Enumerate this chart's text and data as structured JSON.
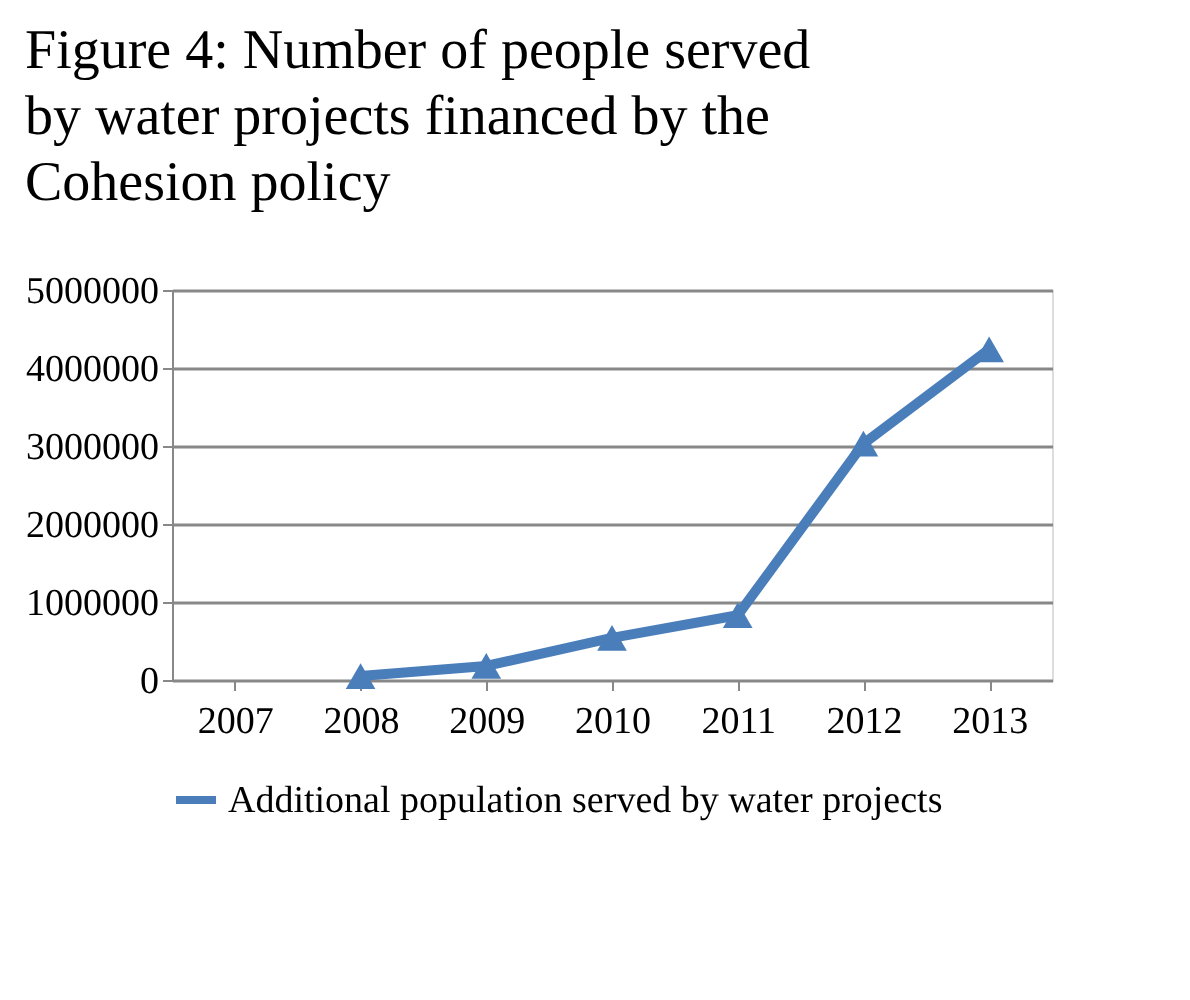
{
  "chart_data": {
    "type": "line",
    "title": [
      "Figure 4: Number of people served",
      "by water projects financed by the",
      "Cohesion policy"
    ],
    "categories": [
      "2007",
      "2008",
      "2009",
      "2010",
      "2011",
      "2012",
      "2013"
    ],
    "series": [
      {
        "name": "Additional population served by water projects",
        "color": "#4a7ebb",
        "values": [
          null,
          50000,
          180000,
          540000,
          830000,
          3030000,
          4240000
        ]
      }
    ],
    "ylim": [
      0,
      5000000
    ],
    "yticks": [
      0,
      1000000,
      2000000,
      3000000,
      4000000,
      5000000
    ],
    "grid": "y",
    "legend": "bottom",
    "marker": "triangle",
    "line_style": "solid"
  }
}
